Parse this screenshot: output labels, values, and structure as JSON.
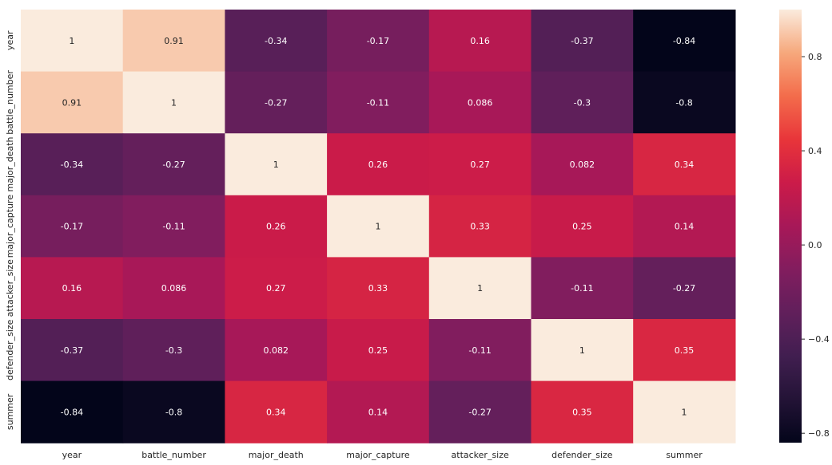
{
  "chart_data": {
    "type": "heatmap",
    "title": "",
    "xlabel": "",
    "ylabel": "",
    "x_categories": [
      "year",
      "battle_number",
      "major_death",
      "major_capture",
      "attacker_size",
      "defender_size",
      "summer"
    ],
    "y_categories": [
      "year",
      "battle_number",
      "major_death",
      "major_capture",
      "attacker_size",
      "defender_size",
      "summer"
    ],
    "values": [
      [
        1,
        0.91,
        -0.34,
        -0.17,
        0.16,
        -0.37,
        -0.84
      ],
      [
        0.91,
        1,
        -0.27,
        -0.11,
        0.086,
        -0.3,
        -0.8
      ],
      [
        -0.34,
        -0.27,
        1,
        0.26,
        0.27,
        0.082,
        0.34
      ],
      [
        -0.17,
        -0.11,
        0.26,
        1,
        0.33,
        0.25,
        0.14
      ],
      [
        0.16,
        0.086,
        0.27,
        0.33,
        1,
        -0.11,
        -0.27
      ],
      [
        -0.37,
        -0.3,
        0.082,
        0.25,
        -0.11,
        1,
        0.35
      ],
      [
        -0.84,
        -0.8,
        0.34,
        0.14,
        -0.27,
        0.35,
        1
      ]
    ],
    "annotations": [
      [
        "1",
        "0.91",
        "-0.34",
        "-0.17",
        "0.16",
        "-0.37",
        "-0.84"
      ],
      [
        "0.91",
        "1",
        "-0.27",
        "-0.11",
        "0.086",
        "-0.3",
        "-0.8"
      ],
      [
        "-0.34",
        "-0.27",
        "1",
        "0.26",
        "0.27",
        "0.082",
        "0.34"
      ],
      [
        "-0.17",
        "-0.11",
        "0.26",
        "1",
        "0.33",
        "0.25",
        "0.14"
      ],
      [
        "0.16",
        "0.086",
        "0.27",
        "0.33",
        "1",
        "-0.11",
        "-0.27"
      ],
      [
        "-0.37",
        "-0.3",
        "0.082",
        "0.25",
        "-0.11",
        "1",
        "0.35"
      ],
      [
        "-0.84",
        "-0.8",
        "0.34",
        "0.14",
        "-0.27",
        "0.35",
        "1"
      ]
    ],
    "colorbar": {
      "vmin": -0.84,
      "vmax": 1,
      "ticks": [
        0.8,
        0.4,
        0.0,
        -0.4,
        -0.8
      ],
      "tick_labels": [
        "0.8",
        "0.4",
        "0.0",
        "−0.4",
        "−0.8"
      ],
      "colormap": "rocket"
    },
    "grid": false,
    "legend": "colorbar-right"
  }
}
